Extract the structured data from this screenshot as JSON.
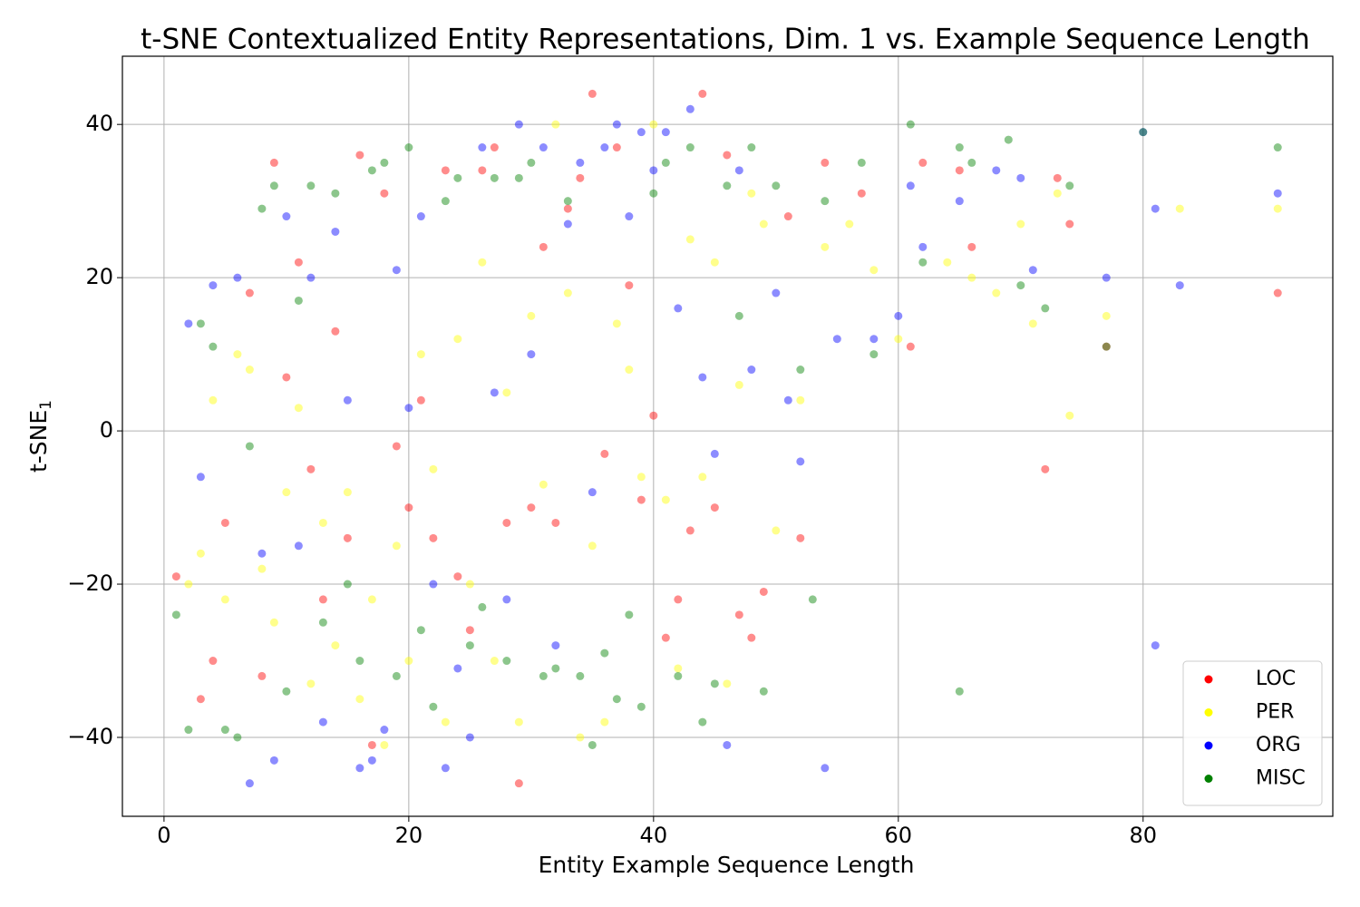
{
  "chart_data": {
    "type": "scatter",
    "title": "t-SNE Contextualized Entity Representations, Dim. 1 vs. Example Sequence Length",
    "xlabel": "Entity Example Sequence Length",
    "ylabel": {
      "text": "t-SNE",
      "subscript": "1"
    },
    "xlim": [
      -3.4,
      95.5
    ],
    "ylim": [
      -50.3,
      48.9
    ],
    "xticks": [
      0,
      20,
      40,
      60,
      80
    ],
    "yticks": [
      {
        "value": -40,
        "label": "−40"
      },
      {
        "value": -20,
        "label": "−20"
      },
      0,
      20,
      40
    ],
    "grid": true,
    "legend": "lower right",
    "alpha": 0.45,
    "series": [
      {
        "name": "LOC",
        "color": "#ff0000",
        "x": [
          1,
          3,
          4,
          5,
          7,
          8,
          9,
          10,
          11,
          12,
          13,
          14,
          15,
          16,
          17,
          18,
          19,
          20,
          21,
          22,
          23,
          24,
          25,
          26,
          27,
          28,
          29,
          30,
          31,
          32,
          33,
          34,
          35,
          36,
          37,
          38,
          39,
          40,
          41,
          42,
          43,
          44,
          45,
          46,
          47,
          48,
          49,
          51,
          52,
          54,
          57,
          61,
          62,
          65,
          66,
          72,
          73,
          74,
          77,
          91
        ],
        "values": [
          -19,
          -35,
          -30,
          -12,
          18,
          -32,
          35,
          7,
          22,
          -5,
          -22,
          13,
          -14,
          36,
          -41,
          31,
          -2,
          -10,
          4,
          -14,
          34,
          -19,
          -26,
          34,
          37,
          -12,
          -46,
          -10,
          24,
          -12,
          29,
          33,
          44,
          -3,
          37,
          19,
          -9,
          2,
          -27,
          -22,
          -13,
          44,
          -10,
          36,
          -24,
          -27,
          -21,
          28,
          -14,
          35,
          31,
          11,
          35,
          34,
          24,
          -5,
          33,
          27,
          11,
          18
        ]
      },
      {
        "name": "PER",
        "color": "#ffff00",
        "x": [
          2,
          3,
          4,
          5,
          6,
          7,
          8,
          9,
          10,
          11,
          12,
          13,
          14,
          15,
          16,
          17,
          18,
          19,
          20,
          21,
          22,
          23,
          24,
          25,
          26,
          27,
          28,
          29,
          30,
          31,
          32,
          33,
          34,
          35,
          36,
          37,
          38,
          39,
          40,
          41,
          42,
          43,
          44,
          45,
          46,
          47,
          48,
          49,
          50,
          52,
          54,
          56,
          58,
          60,
          64,
          66,
          68,
          70,
          71,
          73,
          74,
          77,
          83,
          91
        ],
        "values": [
          -20,
          -16,
          4,
          -22,
          10,
          8,
          -18,
          -25,
          -8,
          3,
          -33,
          -12,
          -28,
          -8,
          -35,
          -22,
          -41,
          -15,
          -30,
          10,
          -5,
          -38,
          12,
          -20,
          22,
          -30,
          5,
          -38,
          15,
          -7,
          40,
          18,
          -40,
          -15,
          -38,
          14,
          8,
          -6,
          40,
          -9,
          -31,
          25,
          -6,
          22,
          -33,
          6,
          31,
          27,
          -13,
          4,
          24,
          27,
          21,
          12,
          22,
          20,
          18,
          27,
          14,
          31,
          2,
          15,
          29,
          29
        ]
      },
      {
        "name": "ORG",
        "color": "#0000ff",
        "x": [
          2,
          3,
          4,
          6,
          7,
          8,
          9,
          10,
          11,
          12,
          13,
          14,
          15,
          16,
          17,
          18,
          19,
          20,
          21,
          22,
          23,
          24,
          25,
          26,
          27,
          28,
          29,
          30,
          31,
          32,
          33,
          34,
          35,
          36,
          37,
          38,
          39,
          40,
          41,
          42,
          43,
          44,
          45,
          46,
          47,
          48,
          50,
          51,
          52,
          54,
          55,
          58,
          60,
          61,
          62,
          65,
          68,
          70,
          71,
          77,
          80,
          81,
          81,
          83,
          91
        ],
        "values": [
          14,
          -6,
          19,
          20,
          -46,
          -16,
          -43,
          28,
          -15,
          20,
          -38,
          26,
          4,
          -44,
          -43,
          -39,
          21,
          3,
          28,
          -20,
          -44,
          -31,
          -40,
          37,
          5,
          -22,
          40,
          10,
          37,
          -28,
          27,
          35,
          -8,
          37,
          40,
          28,
          39,
          34,
          39,
          16,
          42,
          7,
          -3,
          -41,
          34,
          8,
          18,
          4,
          -4,
          -44,
          12,
          12,
          15,
          32,
          24,
          30,
          34,
          33,
          21,
          20,
          39,
          -28,
          29,
          19,
          31
        ]
      },
      {
        "name": "MISC",
        "color": "#008000",
        "x": [
          1,
          2,
          3,
          4,
          5,
          6,
          7,
          8,
          9,
          10,
          11,
          12,
          13,
          14,
          15,
          16,
          17,
          18,
          19,
          20,
          21,
          22,
          23,
          24,
          25,
          26,
          27,
          28,
          29,
          30,
          31,
          32,
          33,
          34,
          35,
          36,
          37,
          38,
          39,
          40,
          41,
          42,
          43,
          44,
          45,
          46,
          47,
          48,
          49,
          50,
          52,
          53,
          54,
          57,
          58,
          61,
          62,
          65,
          65,
          66,
          69,
          70,
          72,
          74,
          77,
          80,
          91
        ],
        "values": [
          -24,
          -39,
          14,
          11,
          -39,
          -40,
          -2,
          29,
          32,
          -34,
          17,
          32,
          -25,
          31,
          -20,
          -30,
          34,
          35,
          -32,
          37,
          -26,
          -36,
          30,
          33,
          -28,
          -23,
          33,
          -30,
          33,
          35,
          -32,
          -31,
          30,
          -32,
          -41,
          -29,
          -35,
          -24,
          -36,
          31,
          35,
          -32,
          37,
          -38,
          -33,
          32,
          15,
          37,
          -34,
          32,
          8,
          -22,
          30,
          35,
          10,
          40,
          22,
          -34,
          37,
          35,
          38,
          19,
          16,
          32,
          11,
          39,
          37
        ]
      }
    ]
  }
}
